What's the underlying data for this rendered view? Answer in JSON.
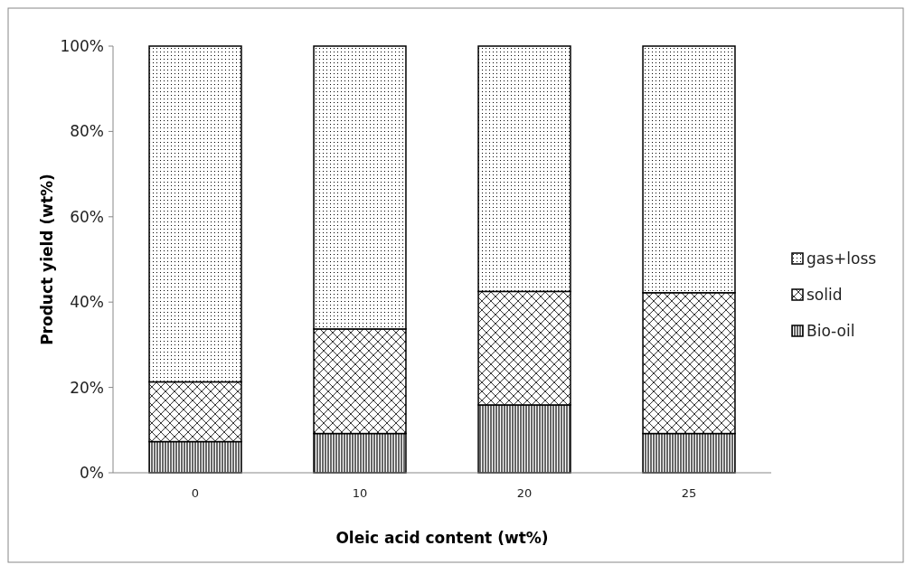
{
  "chart_data": {
    "type": "bar",
    "stacked": true,
    "xlabel": "Oleic acid content (wt%)",
    "ylabel": "Product yield (wt%)",
    "categories": [
      "0",
      "10",
      "20",
      "25"
    ],
    "series": [
      {
        "name": "Bio-oil",
        "color": "#000000",
        "values": [
          7.3,
          9.2,
          15.9,
          9.2
        ]
      },
      {
        "name": "solid",
        "color": "#000000",
        "values": [
          14.0,
          24.5,
          26.6,
          33.0
        ]
      },
      {
        "name": "gas+loss",
        "color": "#000000",
        "values": [
          78.7,
          66.3,
          57.5,
          57.8
        ]
      }
    ],
    "ylim": [
      0,
      100
    ],
    "yticks": [
      {
        "value": 0,
        "label": "0%"
      },
      {
        "value": 20,
        "label": "20%"
      },
      {
        "value": 40,
        "label": "40%"
      },
      {
        "value": 60,
        "label": "60%"
      },
      {
        "value": 80,
        "label": "80%"
      },
      {
        "value": 100,
        "label": "100%"
      }
    ],
    "grid": false,
    "legend": "right"
  }
}
